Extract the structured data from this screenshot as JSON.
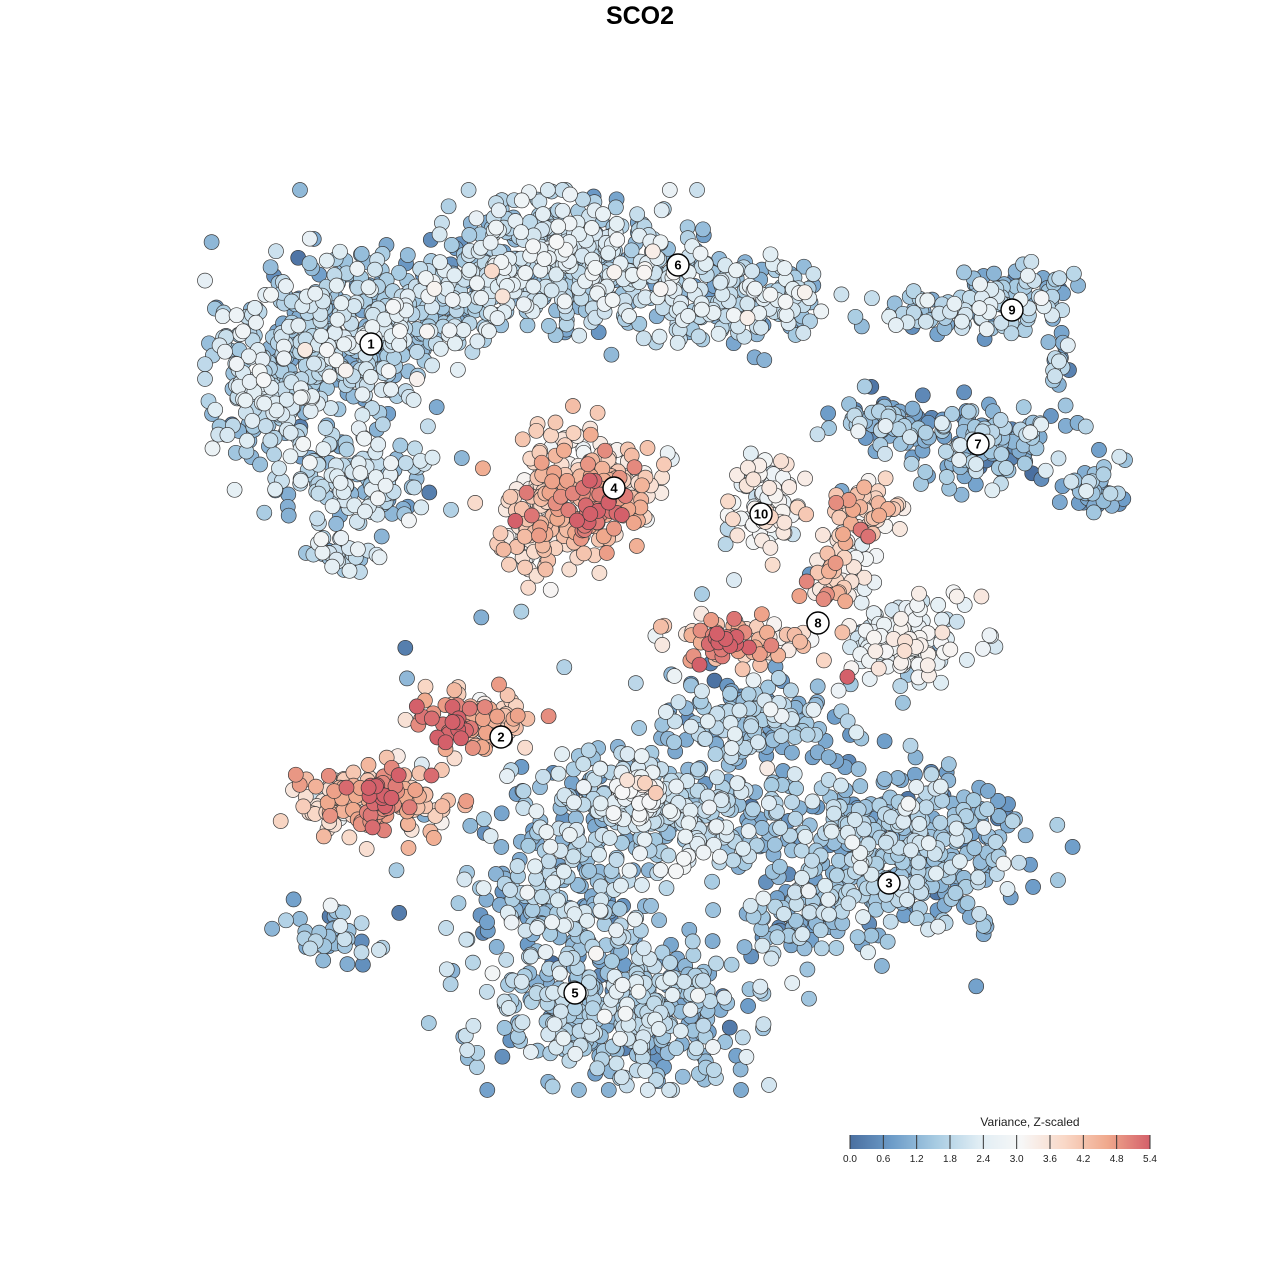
{
  "title": "SCO2",
  "chart_data": {
    "type": "scatter",
    "title": "SCO2",
    "xlabel": "",
    "ylabel": "",
    "legend": {
      "title": "Variance, Z-scaled",
      "ticks": [
        "0.0",
        "0.6",
        "1.2",
        "1.8",
        "2.4",
        "3.0",
        "3.6",
        "4.2",
        "4.8",
        "5.4"
      ],
      "range": [
        0,
        5.4
      ],
      "placement": "bottom-right",
      "colors": [
        "#4a6fa0",
        "#6e9dc9",
        "#a7cbe2",
        "#e0edf4",
        "#f7f7f7",
        "#f9d8c7",
        "#f0a98d",
        "#d4606a"
      ]
    },
    "clusters": [
      {
        "label": "1",
        "mean": 1.7
      },
      {
        "label": "2",
        "mean": 3.9
      },
      {
        "label": "3",
        "mean": 1.4
      },
      {
        "label": "4",
        "mean": 3.8
      },
      {
        "label": "5",
        "mean": 1.5
      },
      {
        "label": "6",
        "mean": 1.8
      },
      {
        "label": "7",
        "mean": 1.2
      },
      {
        "label": "8",
        "mean": 3.9
      },
      {
        "label": "9",
        "mean": 1.6
      },
      {
        "label": "10",
        "mean": 3.0
      }
    ]
  }
}
